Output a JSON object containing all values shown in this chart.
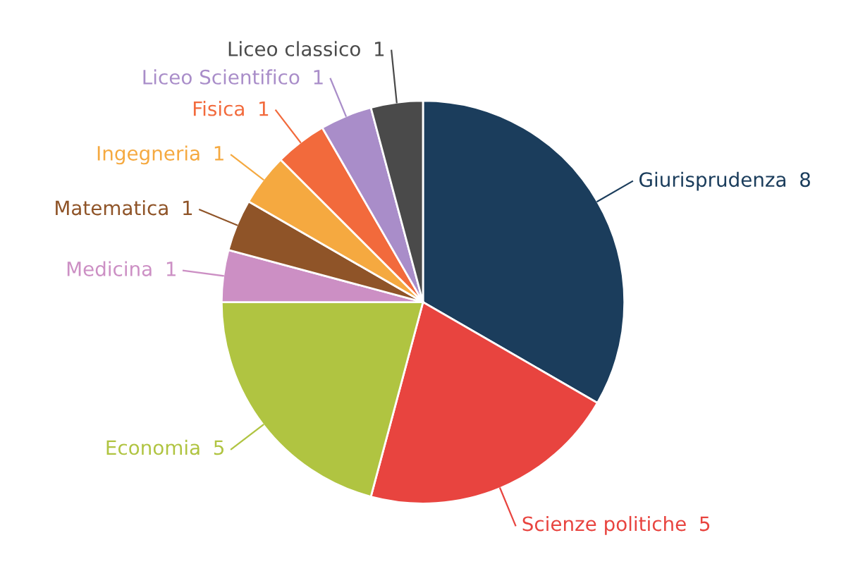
{
  "chart_data": {
    "type": "pie",
    "categories": [
      "Giurisprudenza",
      "Scienze politiche",
      "Economia",
      "Medicina",
      "Matematica",
      "Ingegneria",
      "Fisica",
      "Liceo Scientifico",
      "Liceo classico"
    ],
    "values": [
      8,
      5,
      5,
      1,
      1,
      1,
      1,
      1,
      1
    ],
    "colors": [
      "#1b3d5c",
      "#e8443f",
      "#b0c441",
      "#cc8fc4",
      "#8f5428",
      "#f5a940",
      "#f26a3c",
      "#a98dc9",
      "#4a4a4a"
    ],
    "data_labels": true
  }
}
